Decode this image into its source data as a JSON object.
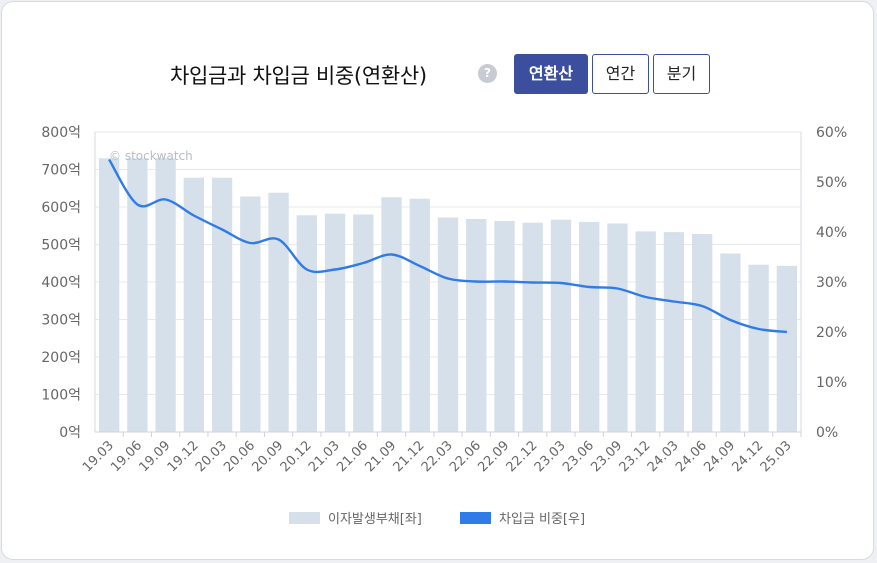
{
  "header": {
    "title": "차입금과 차입금 비중(연환산)",
    "help_icon": "?",
    "buttons": [
      {
        "label": "연환산",
        "active": true
      },
      {
        "label": "연간",
        "active": false
      },
      {
        "label": "분기",
        "active": false
      }
    ]
  },
  "watermark": "© stockwatch",
  "colors": {
    "bar": "#d6e0eb",
    "line": "#2f7be8",
    "accent": "#3c4f9e"
  },
  "chart_data": {
    "type": "bar",
    "categories": [
      "19.03",
      "19.06",
      "19.09",
      "19.12",
      "20.03",
      "20.06",
      "20.09",
      "20.12",
      "21.03",
      "21.06",
      "21.09",
      "21.12",
      "22.03",
      "22.06",
      "22.09",
      "22.12",
      "23.03",
      "23.06",
      "23.09",
      "23.12",
      "24.03",
      "24.06",
      "24.09",
      "24.12",
      "25.03"
    ],
    "left_axis": {
      "ticks": [
        "0억",
        "100억",
        "200억",
        "300억",
        "400억",
        "500억",
        "600억",
        "700억",
        "800억"
      ],
      "ylim": [
        0,
        800
      ]
    },
    "right_axis": {
      "ticks": [
        "0%",
        "10%",
        "20%",
        "30%",
        "40%",
        "50%",
        "60%"
      ],
      "ylim": [
        0,
        60
      ]
    },
    "series": [
      {
        "name": "이자발생부채[좌]",
        "type": "bar",
        "axis": "left",
        "values": [
          730,
          730,
          730,
          678,
          678,
          628,
          638,
          578,
          582,
          580,
          626,
          622,
          572,
          568,
          563,
          558,
          566,
          560,
          556,
          535,
          533,
          528,
          476,
          446,
          443
        ]
      },
      {
        "name": "차입금 비중[우]",
        "type": "line",
        "axis": "right",
        "values": [
          54.5,
          45.5,
          46.5,
          43.3,
          40.5,
          37.8,
          38.5,
          32.5,
          32.5,
          33.8,
          35.5,
          33.2,
          30.7,
          30.1,
          30.1,
          29.9,
          29.8,
          29.0,
          28.7,
          27.0,
          26.1,
          25.2,
          22.4,
          20.6,
          20.0
        ]
      }
    ],
    "grid": true,
    "legend": "bottom-center"
  }
}
